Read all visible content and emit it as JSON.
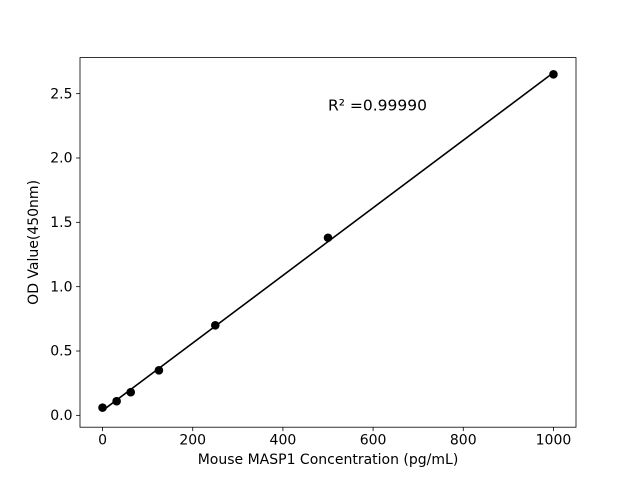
{
  "figure": {
    "background_color": "#ffffff",
    "foreground_color": "#000000"
  },
  "chart_data": {
    "type": "scatter",
    "title": "",
    "xlabel": "Mouse MASP1 Concentration (pg/mL)",
    "ylabel": "OD Value(450nm)",
    "x": [
      0,
      31.25,
      62.5,
      125,
      250,
      500,
      1000
    ],
    "y": [
      0.06,
      0.11,
      0.18,
      0.35,
      0.7,
      1.38,
      2.65
    ],
    "fit": {
      "type": "linear",
      "x_range": [
        0,
        1000
      ]
    },
    "annotation": {
      "text": "R² =0.99990",
      "x": 500,
      "y": 2.37
    },
    "x_ticks": {
      "values": [
        0,
        200,
        400,
        600,
        800,
        1000
      ],
      "labels": [
        "0",
        "200",
        "400",
        "600",
        "800",
        "1000"
      ]
    },
    "y_ticks": {
      "values": [
        0,
        0.5,
        1,
        1.5,
        2,
        2.5
      ],
      "labels": [
        "0.0",
        "0.5",
        "1.0",
        "1.5",
        "2.0",
        "2.5"
      ]
    },
    "xlim": [
      -50,
      1050
    ],
    "ylim": [
      -0.092,
      2.78
    ],
    "grid": false,
    "legend_position": "none",
    "marker_color": "#000000",
    "line_color": "#000000"
  }
}
